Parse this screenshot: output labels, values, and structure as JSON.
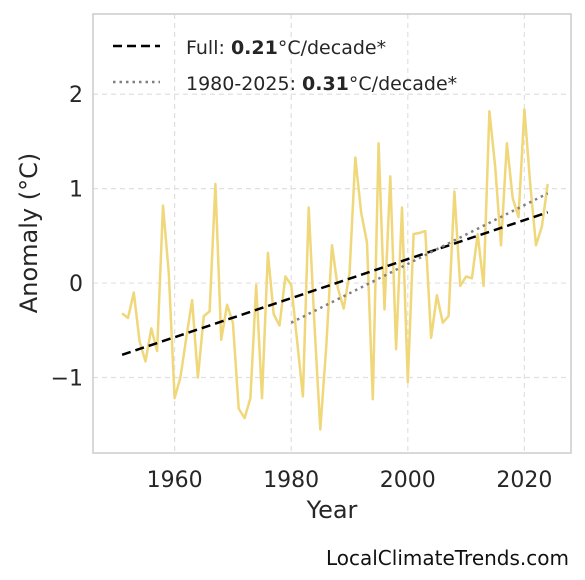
{
  "chart_data": {
    "type": "line",
    "xlabel": "Year",
    "ylabel": "Anomaly (°C)",
    "xlim": [
      1946,
      2028
    ],
    "ylim": [
      -1.8,
      2.85
    ],
    "xticks": [
      1960,
      1980,
      2000,
      2020
    ],
    "yticks": [
      2,
      1,
      0,
      -1
    ],
    "ytick_labels": [
      "2",
      "1",
      "0",
      "−1"
    ],
    "grid": true,
    "legend_position": "top-left",
    "series": [
      {
        "style": "solid",
        "color": "#f0d77a",
        "x": [
          1951,
          1952,
          1953,
          1954,
          1955,
          1956,
          1957,
          1958,
          1959,
          1960,
          1961,
          1962,
          1963,
          1964,
          1965,
          1966,
          1967,
          1968,
          1969,
          1970,
          1971,
          1972,
          1973,
          1974,
          1975,
          1976,
          1977,
          1978,
          1979,
          1980,
          1981,
          1982,
          1983,
          1984,
          1985,
          1986,
          1987,
          1988,
          1989,
          1990,
          1991,
          1992,
          1993,
          1994,
          1995,
          1996,
          1997,
          1998,
          1999,
          2000,
          2001,
          2002,
          2003,
          2004,
          2005,
          2006,
          2007,
          2008,
          2009,
          2010,
          2011,
          2012,
          2013,
          2014,
          2015,
          2016,
          2017,
          2018,
          2019,
          2020,
          2021,
          2022,
          2023,
          2024
        ],
        "values": [
          -0.32,
          -0.37,
          -0.1,
          -0.62,
          -0.83,
          -0.48,
          -0.72,
          0.82,
          0.1,
          -1.22,
          -1.0,
          -0.58,
          -0.18,
          -1.0,
          -0.35,
          -0.3,
          1.05,
          -0.6,
          -0.23,
          -0.42,
          -1.33,
          -1.43,
          -1.22,
          -0.02,
          -1.22,
          0.32,
          -0.33,
          -0.45,
          0.07,
          -0.02,
          -0.6,
          -1.2,
          0.8,
          -0.45,
          -1.55,
          -0.68,
          0.4,
          -0.05,
          -0.27,
          0.1,
          1.33,
          0.75,
          0.43,
          -1.23,
          1.48,
          -0.28,
          1.13,
          -0.7,
          0.8,
          -1.05,
          0.52,
          0.53,
          0.55,
          -0.58,
          -0.13,
          -0.42,
          -0.35,
          0.97,
          -0.03,
          0.07,
          0.05,
          0.52,
          -0.03,
          1.82,
          1.23,
          0.4,
          1.48,
          0.9,
          0.7,
          1.84,
          1.05,
          0.4,
          0.6,
          1.05
        ]
      },
      {
        "style": "dashed",
        "color": "#000000",
        "x": [
          1951,
          2024
        ],
        "values": [
          -0.76,
          0.75
        ]
      },
      {
        "style": "dotted",
        "color": "#808080",
        "x": [
          1980,
          2024
        ],
        "values": [
          -0.42,
          0.95
        ]
      }
    ],
    "legend": [
      {
        "style": "dashed",
        "color": "#000000",
        "prefix": "Full: ",
        "value": "0.21",
        "suffix": "°C/decade*"
      },
      {
        "style": "dotted",
        "color": "#808080",
        "prefix": "1980-2025: ",
        "value": "0.31",
        "suffix": "°C/decade*"
      }
    ]
  },
  "credit": "LocalClimateTrends.com"
}
